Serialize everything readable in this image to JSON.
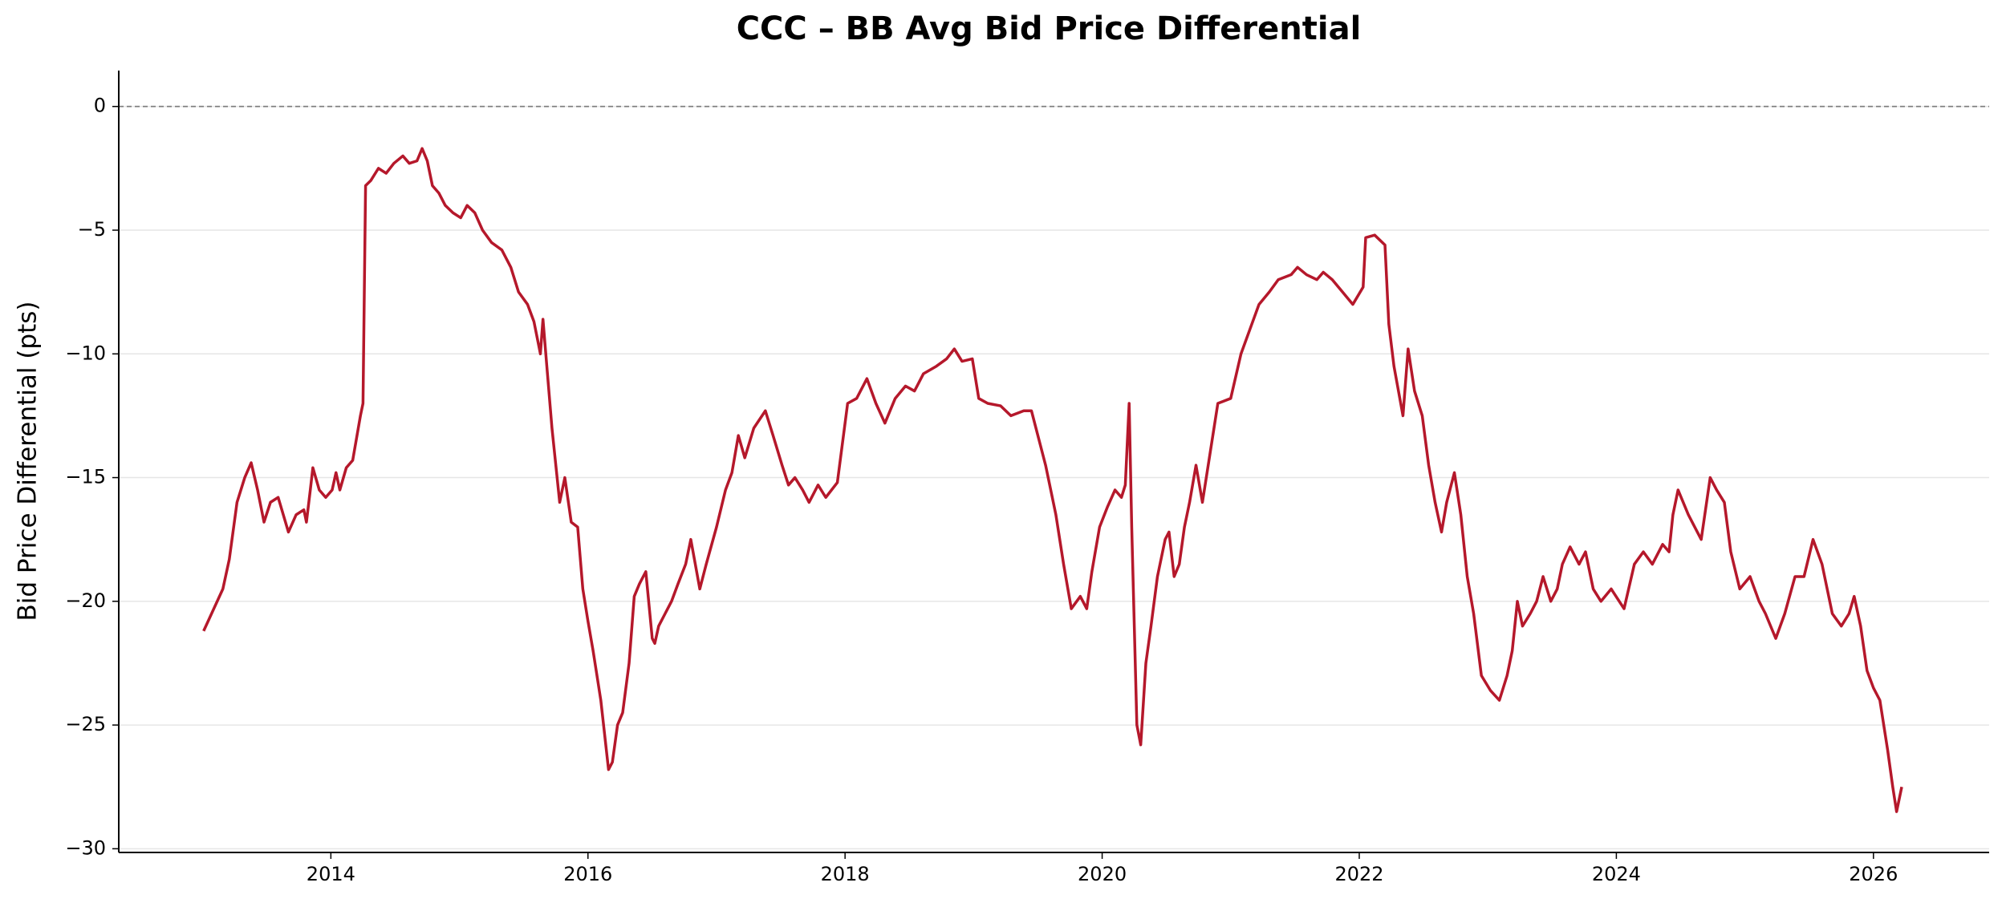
{
  "chart_data": {
    "type": "line",
    "title": "CCC – BB Avg Bid Price Differential",
    "y_label": "Bid Price Differential (pts)",
    "color": "#b5182b",
    "grid": true,
    "hline": 0,
    "xlim": [
      2012.35,
      2026.9
    ],
    "ylim": [
      -30.15,
      1.45
    ],
    "xticks": [
      2014,
      2016,
      2018,
      2020,
      2022,
      2024,
      2026
    ],
    "yticks": [
      {
        "value": -30,
        "label": "−30"
      },
      {
        "value": -25,
        "label": "−25"
      },
      {
        "value": -20,
        "label": "−20"
      },
      {
        "value": -15,
        "label": "−15"
      },
      {
        "value": -10,
        "label": "−10"
      },
      {
        "value": -5,
        "label": "−5"
      },
      0
    ],
    "x": [
      2013.01,
      2013.16,
      2013.21,
      2013.27,
      2013.33,
      2013.38,
      2013.43,
      2013.48,
      2013.53,
      2013.59,
      2013.63,
      2013.67,
      2013.73,
      2013.79,
      2013.81,
      2013.84,
      2013.86,
      2013.91,
      2013.96,
      2014.01,
      2014.04,
      2014.07,
      2014.12,
      2014.17,
      2014.23,
      2014.25,
      2014.27,
      2014.31,
      2014.37,
      2014.43,
      2014.49,
      2014.56,
      2014.61,
      2014.67,
      2014.71,
      2014.75,
      2014.79,
      2014.84,
      2014.89,
      2014.95,
      2015.01,
      2015.06,
      2015.12,
      2015.18,
      2015.25,
      2015.33,
      2015.4,
      2015.46,
      2015.53,
      2015.58,
      2015.63,
      2015.65,
      2015.68,
      2015.72,
      2015.75,
      2015.78,
      2015.82,
      2015.87,
      2015.92,
      2015.96,
      2016.0,
      2016.04,
      2016.07,
      2016.1,
      2016.16,
      2016.19,
      2016.23,
      2016.27,
      2016.32,
      2016.36,
      2016.4,
      2016.45,
      2016.5,
      2016.52,
      2016.55,
      2016.6,
      2016.65,
      2016.7,
      2016.76,
      2016.8,
      2016.87,
      2016.92,
      2017.0,
      2017.07,
      2017.12,
      2017.17,
      2017.22,
      2017.29,
      2017.38,
      2017.44,
      2017.51,
      2017.56,
      2017.61,
      2017.67,
      2017.72,
      2017.79,
      2017.85,
      2017.94,
      2018.02,
      2018.09,
      2018.17,
      2018.24,
      2018.31,
      2018.39,
      2018.47,
      2018.54,
      2018.61,
      2018.71,
      2018.79,
      2018.85,
      2018.91,
      2018.99,
      2019.04,
      2019.11,
      2019.21,
      2019.29,
      2019.39,
      2019.45,
      2019.51,
      2019.56,
      2019.64,
      2019.7,
      2019.76,
      2019.83,
      2019.88,
      2019.92,
      2019.98,
      2020.04,
      2020.1,
      2020.15,
      2020.18,
      2020.21,
      2020.23,
      2020.27,
      2020.3,
      2020.34,
      2020.38,
      2020.43,
      2020.49,
      2020.52,
      2020.56,
      2020.6,
      2020.64,
      2020.68,
      2020.73,
      2020.78,
      2020.84,
      2020.9,
      2021.0,
      2021.08,
      2021.15,
      2021.22,
      2021.3,
      2021.37,
      2021.47,
      2021.52,
      2021.59,
      2021.67,
      2021.72,
      2021.79,
      2021.87,
      2021.95,
      2022.03,
      2022.05,
      2022.12,
      2022.2,
      2022.23,
      2022.27,
      2022.34,
      2022.38,
      2022.43,
      2022.49,
      2022.54,
      2022.59,
      2022.64,
      2022.68,
      2022.74,
      2022.79,
      2022.84,
      2022.89,
      2022.95,
      2023.02,
      2023.09,
      2023.15,
      2023.19,
      2023.23,
      2023.27,
      2023.33,
      2023.38,
      2023.43,
      2023.49,
      2023.54,
      2023.58,
      2023.64,
      2023.71,
      2023.76,
      2023.82,
      2023.88,
      2023.96,
      2024.06,
      2024.14,
      2024.21,
      2024.28,
      2024.36,
      2024.41,
      2024.44,
      2024.48,
      2024.56,
      2024.61,
      2024.66,
      2024.73,
      2024.78,
      2024.84,
      2024.89,
      2024.96,
      2025.04,
      2025.11,
      2025.16,
      2025.24,
      2025.31,
      2025.39,
      2025.46,
      2025.53,
      2025.6,
      2025.68,
      2025.75,
      2025.81,
      2025.85,
      2025.9,
      2025.95,
      2026.0,
      2026.05,
      2026.11,
      2026.15,
      2026.18,
      2026.22
    ],
    "values": [
      -21.2,
      -19.5,
      -18.3,
      -16,
      -15,
      -14.4,
      -15.5,
      -16.8,
      -16,
      -15.8,
      -16.5,
      -17.2,
      -16.5,
      -16.3,
      -16.8,
      -15.5,
      -14.6,
      -15.5,
      -15.8,
      -15.5,
      -14.8,
      -15.5,
      -14.6,
      -14.3,
      -12.5,
      -12,
      -3.2,
      -3,
      -2.5,
      -2.7,
      -2.3,
      -2,
      -2.3,
      -2.2,
      -1.7,
      -2.2,
      -3.2,
      -3.5,
      -4,
      -4.3,
      -4.5,
      -4,
      -4.3,
      -5,
      -5.5,
      -5.8,
      -6.5,
      -7.5,
      -8,
      -8.7,
      -10,
      -8.6,
      -10.5,
      -13,
      -14.5,
      -16,
      -15,
      -16.8,
      -17,
      -19.5,
      -20.8,
      -22,
      -23,
      -24,
      -26.8,
      -26.5,
      -25,
      -24.5,
      -22.5,
      -19.8,
      -19.3,
      -18.8,
      -21.5,
      -21.7,
      -21,
      -20.5,
      -20,
      -19.3,
      -18.5,
      -17.5,
      -19.5,
      -18.5,
      -17,
      -15.5,
      -14.8,
      -13.3,
      -14.2,
      -13,
      -12.3,
      -13.3,
      -14.5,
      -15.3,
      -15,
      -15.5,
      -16,
      -15.3,
      -15.8,
      -15.2,
      -12,
      -11.8,
      -11,
      -12,
      -12.8,
      -11.8,
      -11.3,
      -11.5,
      -10.8,
      -10.5,
      -10.2,
      -9.8,
      -10.3,
      -10.2,
      -11.8,
      -12,
      -12.1,
      -12.5,
      -12.3,
      -12.3,
      -13.5,
      -14.5,
      -16.5,
      -18.5,
      -20.3,
      -19.8,
      -20.3,
      -18.8,
      -17,
      -16.2,
      -15.5,
      -15.8,
      -15.3,
      -12,
      -17,
      -25,
      -25.8,
      -22.5,
      -21,
      -19,
      -17.5,
      -17.2,
      -19,
      -18.5,
      -17,
      -16,
      -14.5,
      -16,
      -14,
      -12,
      -11.8,
      -10,
      -9,
      -8,
      -7.5,
      -7,
      -6.8,
      -6.5,
      -6.8,
      -7,
      -6.7,
      -7,
      -7.5,
      -8,
      -7.3,
      -5.3,
      -5.2,
      -5.6,
      -8.8,
      -10.5,
      -12.5,
      -9.8,
      -11.5,
      -12.5,
      -14.5,
      -16,
      -17.2,
      -16,
      -14.8,
      -16.5,
      -19,
      -20.5,
      -23,
      -23.6,
      -24,
      -23,
      -22,
      -20,
      -21,
      -20.5,
      -20,
      -19,
      -20,
      -19.5,
      -18.5,
      -17.8,
      -18.5,
      -18,
      -19.5,
      -20,
      -19.5,
      -20.3,
      -18.5,
      -18,
      -18.5,
      -17.7,
      -18,
      -16.5,
      -15.5,
      -16.5,
      -17,
      -17.5,
      -15,
      -15.5,
      -16,
      -18,
      -19.5,
      -19,
      -20,
      -20.5,
      -21.5,
      -20.5,
      -19,
      -19,
      -17.5,
      -18.5,
      -20.5,
      -21,
      -20.5,
      -19.8,
      -21,
      -22.8,
      -23.5,
      -24,
      -26,
      -27.5,
      -28.5,
      -27.5
    ]
  }
}
